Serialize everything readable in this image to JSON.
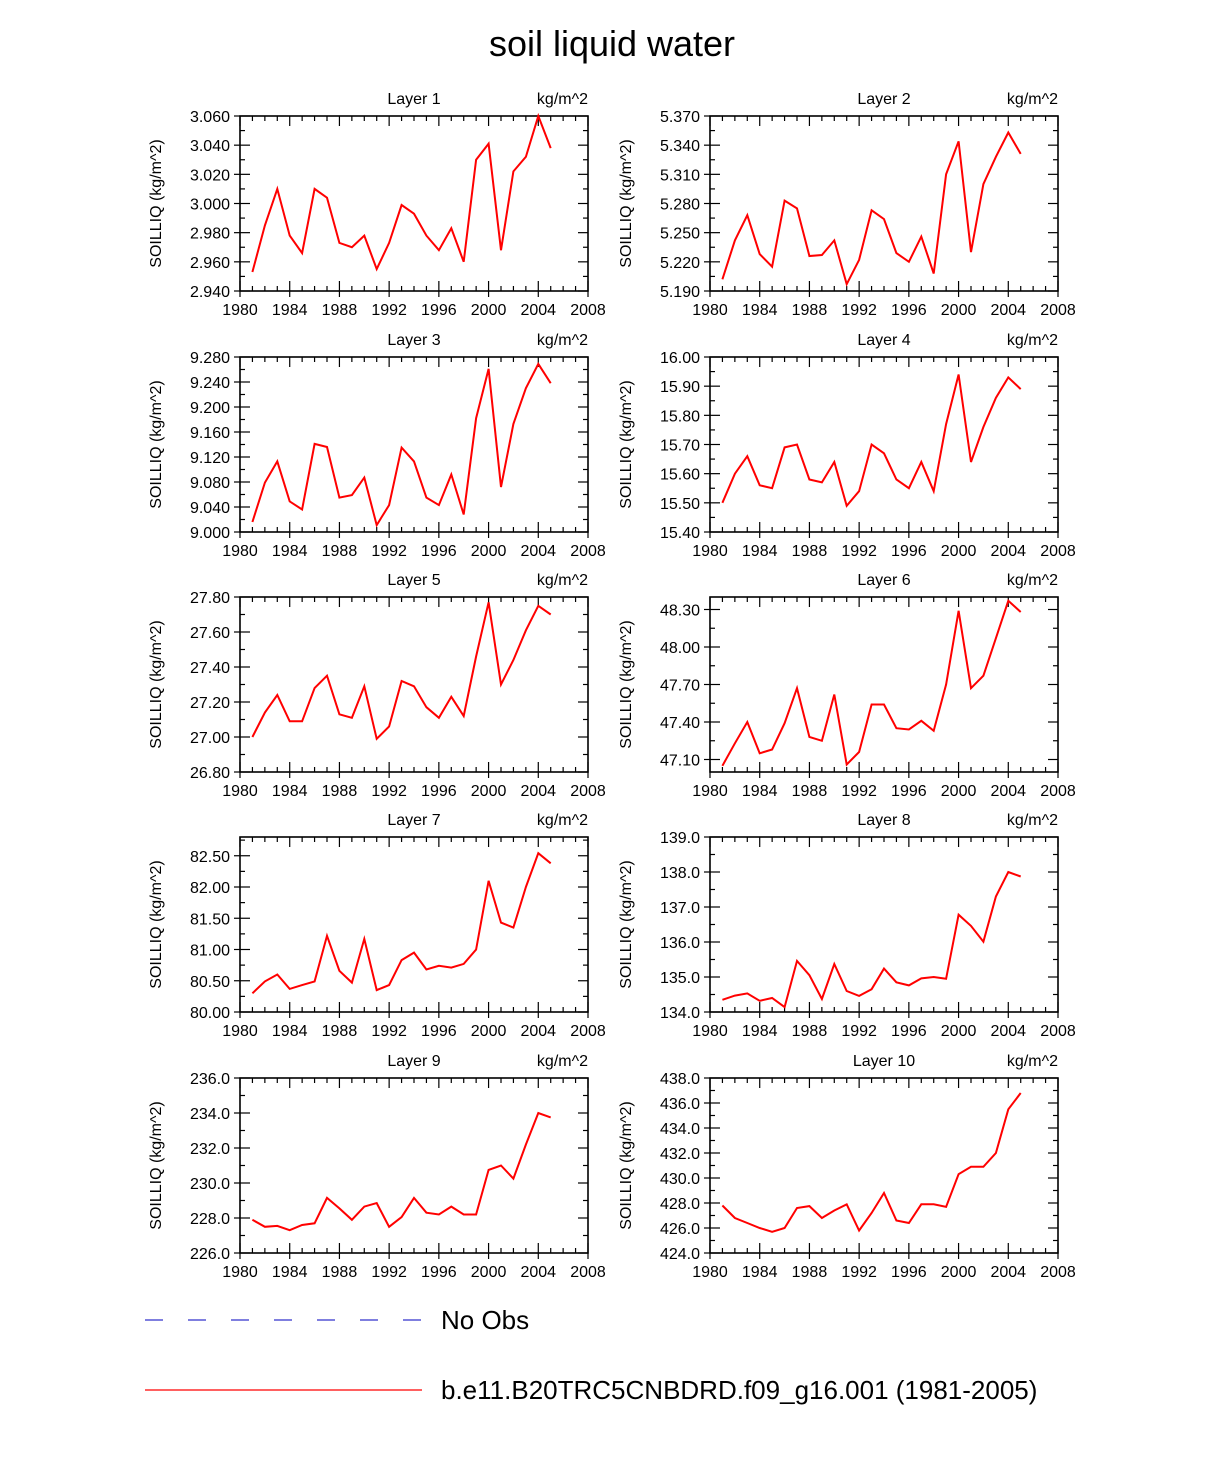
{
  "title": "soil liquid water",
  "legend": {
    "items": [
      {
        "label": "No Obs",
        "color": "#3333cc",
        "style": "dashed"
      },
      {
        "label": "b.e11.B20TRC5CNBDRD.f09_g16.001 (1981-2005)",
        "color": "#ff0000",
        "style": "solid"
      }
    ]
  },
  "colors": {
    "series": "#ff0000",
    "no_obs": "#3333cc",
    "axis": "#000000"
  },
  "chart_data": [
    {
      "type": "line",
      "title": "Layer 1",
      "unit_label": "kg/m^2",
      "ylabel": "SOILLIQ  (kg/m^2)",
      "xlim": [
        1980,
        2008
      ],
      "ylim": [
        2.94,
        3.06
      ],
      "x_ticks": [
        "1980",
        "1984",
        "1988",
        "1992",
        "1996",
        "2000",
        "2004",
        "2008"
      ],
      "y_ticks": [
        "2.940",
        "2.960",
        "2.980",
        "3.000",
        "3.020",
        "3.040",
        "3.060"
      ],
      "series": [
        {
          "name": "b.e11.B20TRC5CNBDRD.f09_g16.001 (1981-2005)",
          "x": [
            1981,
            1982,
            1983,
            1984,
            1985,
            1986,
            1987,
            1988,
            1989,
            1990,
            1991,
            1992,
            1993,
            1994,
            1995,
            1996,
            1997,
            1998,
            1999,
            2000,
            2001,
            2002,
            2003,
            2004,
            2005
          ],
          "values": [
            2.953,
            2.985,
            3.01,
            2.978,
            2.966,
            3.01,
            3.004,
            2.973,
            2.97,
            2.978,
            2.955,
            2.973,
            2.999,
            2.993,
            2.978,
            2.968,
            2.983,
            2.96,
            3.03,
            3.041,
            2.968,
            3.022,
            3.032,
            3.06,
            3.038
          ]
        }
      ]
    },
    {
      "type": "line",
      "title": "Layer 2",
      "unit_label": "kg/m^2",
      "ylabel": "SOILLIQ  (kg/m^2)",
      "xlim": [
        1980,
        2008
      ],
      "ylim": [
        5.19,
        5.37
      ],
      "x_ticks": [
        "1980",
        "1984",
        "1988",
        "1992",
        "1996",
        "2000",
        "2004",
        "2008"
      ],
      "y_ticks": [
        "5.190",
        "5.220",
        "5.250",
        "5.280",
        "5.310",
        "5.340",
        "5.370"
      ],
      "series": [
        {
          "name": "b.e11.B20TRC5CNBDRD.f09_g16.001 (1981-2005)",
          "x": [
            1981,
            1982,
            1983,
            1984,
            1985,
            1986,
            1987,
            1988,
            1989,
            1990,
            1991,
            1992,
            1993,
            1994,
            1995,
            1996,
            1997,
            1998,
            1999,
            2000,
            2001,
            2002,
            2003,
            2004,
            2005
          ],
          "values": [
            5.202,
            5.242,
            5.268,
            5.228,
            5.215,
            5.283,
            5.275,
            5.226,
            5.227,
            5.242,
            5.197,
            5.222,
            5.273,
            5.264,
            5.229,
            5.22,
            5.246,
            5.208,
            5.31,
            5.344,
            5.23,
            5.3,
            5.328,
            5.353,
            5.331
          ]
        }
      ]
    },
    {
      "type": "line",
      "title": "Layer 3",
      "unit_label": "kg/m^2",
      "ylabel": "SOILLIQ  (kg/m^2)",
      "xlim": [
        1980,
        2008
      ],
      "ylim": [
        9.0,
        9.28
      ],
      "x_ticks": [
        "1980",
        "1984",
        "1988",
        "1992",
        "1996",
        "2000",
        "2004",
        "2008"
      ],
      "y_ticks": [
        "9.000",
        "9.040",
        "9.080",
        "9.120",
        "9.160",
        "9.200",
        "9.240",
        "9.280"
      ],
      "series": [
        {
          "name": "b.e11.B20TRC5CNBDRD.f09_g16.001 (1981-2005)",
          "x": [
            1981,
            1982,
            1983,
            1984,
            1985,
            1986,
            1987,
            1988,
            1989,
            1990,
            1991,
            1992,
            1993,
            1994,
            1995,
            1996,
            1997,
            1998,
            1999,
            2000,
            2001,
            2002,
            2003,
            2004,
            2005
          ],
          "values": [
            9.016,
            9.079,
            9.113,
            9.049,
            9.036,
            9.141,
            9.136,
            9.055,
            9.059,
            9.087,
            9.011,
            9.043,
            9.135,
            9.113,
            9.055,
            9.043,
            9.092,
            9.028,
            9.182,
            9.261,
            9.072,
            9.173,
            9.23,
            9.269,
            9.238
          ]
        }
      ]
    },
    {
      "type": "line",
      "title": "Layer 4",
      "unit_label": "kg/m^2",
      "ylabel": "SOILLIQ  (kg/m^2)",
      "xlim": [
        1980,
        2008
      ],
      "ylim": [
        15.4,
        16.0
      ],
      "x_ticks": [
        "1980",
        "1984",
        "1988",
        "1992",
        "1996",
        "2000",
        "2004",
        "2008"
      ],
      "y_ticks": [
        "15.40",
        "15.50",
        "15.60",
        "15.70",
        "15.80",
        "15.90",
        "16.00"
      ],
      "series": [
        {
          "name": "b.e11.B20TRC5CNBDRD.f09_g16.001 (1981-2005)",
          "x": [
            1981,
            1982,
            1983,
            1984,
            1985,
            1986,
            1987,
            1988,
            1989,
            1990,
            1991,
            1992,
            1993,
            1994,
            1995,
            1996,
            1997,
            1998,
            1999,
            2000,
            2001,
            2002,
            2003,
            2004,
            2005
          ],
          "values": [
            15.5,
            15.6,
            15.66,
            15.56,
            15.55,
            15.69,
            15.7,
            15.58,
            15.57,
            15.64,
            15.49,
            15.54,
            15.7,
            15.67,
            15.58,
            15.55,
            15.64,
            15.54,
            15.77,
            15.94,
            15.64,
            15.76,
            15.86,
            15.93,
            15.89
          ]
        }
      ]
    },
    {
      "type": "line",
      "title": "Layer 5",
      "unit_label": "kg/m^2",
      "ylabel": "SOILLIQ  (kg/m^2)",
      "xlim": [
        1980,
        2008
      ],
      "ylim": [
        26.8,
        27.8
      ],
      "x_ticks": [
        "1980",
        "1984",
        "1988",
        "1992",
        "1996",
        "2000",
        "2004",
        "2008"
      ],
      "y_ticks": [
        "26.80",
        "27.00",
        "27.20",
        "27.40",
        "27.60",
        "27.80"
      ],
      "series": [
        {
          "name": "b.e11.B20TRC5CNBDRD.f09_g16.001 (1981-2005)",
          "x": [
            1981,
            1982,
            1983,
            1984,
            1985,
            1986,
            1987,
            1988,
            1989,
            1990,
            1991,
            1992,
            1993,
            1994,
            1995,
            1996,
            1997,
            1998,
            1999,
            2000,
            2001,
            2002,
            2003,
            2004,
            2005
          ],
          "values": [
            27.0,
            27.14,
            27.24,
            27.09,
            27.09,
            27.28,
            27.35,
            27.13,
            27.11,
            27.29,
            26.99,
            27.06,
            27.32,
            27.29,
            27.17,
            27.11,
            27.23,
            27.12,
            27.46,
            27.77,
            27.3,
            27.44,
            27.61,
            27.75,
            27.7
          ]
        }
      ]
    },
    {
      "type": "line",
      "title": "Layer 6",
      "unit_label": "kg/m^2",
      "ylabel": "SOILLIQ  (kg/m^2)",
      "xlim": [
        1980,
        2008
      ],
      "ylim": [
        47.0,
        48.4
      ],
      "x_ticks": [
        "1980",
        "1984",
        "1988",
        "1992",
        "1996",
        "2000",
        "2004",
        "2008"
      ],
      "y_ticks": [
        "47.10",
        "47.40",
        "47.70",
        "48.00",
        "48.30"
      ],
      "series": [
        {
          "name": "b.e11.B20TRC5CNBDRD.f09_g16.001 (1981-2005)",
          "x": [
            1981,
            1982,
            1983,
            1984,
            1985,
            1986,
            1987,
            1988,
            1989,
            1990,
            1991,
            1992,
            1993,
            1994,
            1995,
            1996,
            1997,
            1998,
            1999,
            2000,
            2001,
            2002,
            2003,
            2004,
            2005
          ],
          "values": [
            47.05,
            47.23,
            47.4,
            47.15,
            47.18,
            47.39,
            47.67,
            47.28,
            47.25,
            47.62,
            47.06,
            47.16,
            47.54,
            47.54,
            47.35,
            47.34,
            47.41,
            47.33,
            47.7,
            48.29,
            47.67,
            47.77,
            48.07,
            48.37,
            48.28
          ]
        }
      ]
    },
    {
      "type": "line",
      "title": "Layer 7",
      "unit_label": "kg/m^2",
      "ylabel": "SOILLIQ  (kg/m^2)",
      "xlim": [
        1980,
        2008
      ],
      "ylim": [
        80.0,
        82.8
      ],
      "x_ticks": [
        "1980",
        "1984",
        "1988",
        "1992",
        "1996",
        "2000",
        "2004",
        "2008"
      ],
      "y_ticks": [
        "80.00",
        "80.50",
        "81.00",
        "81.50",
        "82.00",
        "82.50"
      ],
      "series": [
        {
          "name": "b.e11.B20TRC5CNBDRD.f09_g16.001 (1981-2005)",
          "x": [
            1981,
            1982,
            1983,
            1984,
            1985,
            1986,
            1987,
            1988,
            1989,
            1990,
            1991,
            1992,
            1993,
            1994,
            1995,
            1996,
            1997,
            1998,
            1999,
            2000,
            2001,
            2002,
            2003,
            2004,
            2005
          ],
          "values": [
            80.3,
            80.49,
            80.6,
            80.37,
            80.43,
            80.49,
            81.22,
            80.66,
            80.47,
            81.17,
            80.35,
            80.43,
            80.83,
            80.95,
            80.68,
            80.74,
            80.71,
            80.77,
            81.0,
            82.1,
            81.43,
            81.35,
            82.0,
            82.54,
            82.38
          ]
        }
      ]
    },
    {
      "type": "line",
      "title": "Layer 8",
      "unit_label": "kg/m^2",
      "ylabel": "SOILLIQ  (kg/m^2)",
      "xlim": [
        1980,
        2008
      ],
      "ylim": [
        134.0,
        139.0
      ],
      "x_ticks": [
        "1980",
        "1984",
        "1988",
        "1992",
        "1996",
        "2000",
        "2004",
        "2008"
      ],
      "y_ticks": [
        "134.0",
        "135.0",
        "136.0",
        "137.0",
        "138.0",
        "139.0"
      ],
      "series": [
        {
          "name": "b.e11.B20TRC5CNBDRD.f09_g16.001 (1981-2005)",
          "x": [
            1981,
            1982,
            1983,
            1984,
            1985,
            1986,
            1987,
            1988,
            1989,
            1990,
            1991,
            1992,
            1993,
            1994,
            1995,
            1996,
            1997,
            1998,
            1999,
            2000,
            2001,
            2002,
            2003,
            2004,
            2005
          ],
          "values": [
            134.35,
            134.47,
            134.53,
            134.32,
            134.4,
            134.14,
            135.46,
            135.05,
            134.37,
            135.37,
            134.6,
            134.46,
            134.65,
            135.24,
            134.85,
            134.76,
            134.96,
            135.0,
            134.95,
            136.78,
            136.46,
            136.01,
            137.3,
            138.0,
            137.87
          ]
        }
      ]
    },
    {
      "type": "line",
      "title": "Layer 9",
      "unit_label": "kg/m^2",
      "ylabel": "SOILLIQ  (kg/m^2)",
      "xlim": [
        1980,
        2008
      ],
      "ylim": [
        226.0,
        236.0
      ],
      "x_ticks": [
        "1980",
        "1984",
        "1988",
        "1992",
        "1996",
        "2000",
        "2004",
        "2008"
      ],
      "y_ticks": [
        "226.0",
        "228.0",
        "230.0",
        "232.0",
        "234.0",
        "236.0"
      ],
      "series": [
        {
          "name": "b.e11.B20TRC5CNBDRD.f09_g16.001 (1981-2005)",
          "x": [
            1981,
            1982,
            1983,
            1984,
            1985,
            1986,
            1987,
            1988,
            1989,
            1990,
            1991,
            1992,
            1993,
            1994,
            1995,
            1996,
            1997,
            1998,
            1999,
            2000,
            2001,
            2002,
            2003,
            2004,
            2005
          ],
          "values": [
            227.9,
            227.5,
            227.55,
            227.3,
            227.6,
            227.7,
            229.15,
            228.55,
            227.9,
            228.65,
            228.85,
            227.5,
            228.05,
            229.15,
            228.3,
            228.2,
            228.65,
            228.2,
            228.2,
            230.75,
            231.0,
            230.25,
            232.2,
            234.0,
            233.75
          ]
        }
      ]
    },
    {
      "type": "line",
      "title": "Layer 10",
      "unit_label": "kg/m^2",
      "ylabel": "SOILLIQ  (kg/m^2)",
      "xlim": [
        1980,
        2008
      ],
      "ylim": [
        424.0,
        438.0
      ],
      "x_ticks": [
        "1980",
        "1984",
        "1988",
        "1992",
        "1996",
        "2000",
        "2004",
        "2008"
      ],
      "y_ticks": [
        "424.0",
        "426.0",
        "428.0",
        "430.0",
        "432.0",
        "434.0",
        "436.0",
        "438.0"
      ],
      "series": [
        {
          "name": "b.e11.B20TRC5CNBDRD.f09_g16.001 (1981-2005)",
          "x": [
            1981,
            1982,
            1983,
            1984,
            1985,
            1986,
            1987,
            1988,
            1989,
            1990,
            1991,
            1992,
            1993,
            1994,
            1995,
            1996,
            1997,
            1998,
            1999,
            2000,
            2001,
            2002,
            2003,
            2004,
            2005
          ],
          "values": [
            427.8,
            426.8,
            426.4,
            426.0,
            425.7,
            426.0,
            427.6,
            427.75,
            426.8,
            427.4,
            427.9,
            425.8,
            427.2,
            428.8,
            426.6,
            426.4,
            427.9,
            427.9,
            427.7,
            430.3,
            430.9,
            430.9,
            432.0,
            435.5,
            436.8
          ]
        }
      ]
    }
  ]
}
